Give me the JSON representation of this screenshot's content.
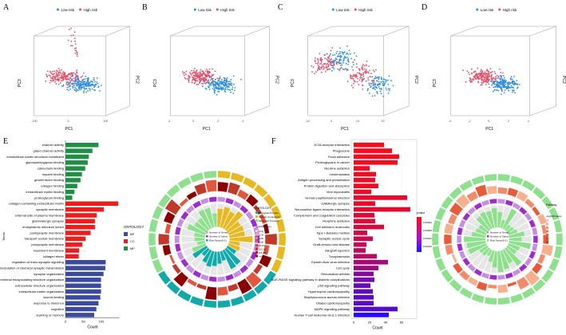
{
  "chart_data": [
    {
      "panel": "A",
      "type": "scatter",
      "title": "",
      "legend": [
        "Low risk",
        "High risk"
      ],
      "xlabel": "PC1",
      "ylabel": "PC3",
      "zlabel": "PC2",
      "ticks": [
        "-100",
        "0",
        "100"
      ]
    },
    {
      "panel": "B",
      "type": "scatter",
      "title": "",
      "legend": [
        "Low risk",
        "High risk"
      ],
      "xlabel": "PC1",
      "ylabel": "PC3",
      "zlabel": "PC2",
      "ticks": [
        "-2",
        "0",
        "2",
        "4"
      ]
    },
    {
      "panel": "C",
      "type": "scatter",
      "title": "",
      "legend": [
        "Low risk",
        "High risk"
      ],
      "xlabel": "PC1",
      "ylabel": "PC3",
      "zlabel": "PC2",
      "ticks": [
        "-10",
        "0",
        "10",
        "20"
      ]
    },
    {
      "panel": "D",
      "type": "scatter",
      "title": "",
      "legend": [
        "Low risk",
        "High risk"
      ],
      "xlabel": "PC1",
      "ylabel": "PC3",
      "zlabel": "PC2",
      "ticks": [
        "-4",
        "-2",
        "0",
        "2",
        "4"
      ]
    },
    {
      "panel": "E",
      "type": "bar",
      "orientation": "horizontal",
      "xlabel": "Count",
      "ylabel": "Terms",
      "xlim": [
        0,
        150
      ],
      "xticks": [
        "0",
        "50",
        "100"
      ],
      "legend_title": "ONTOLOGY",
      "legend": [
        {
          "name": "BP",
          "color": "#3b4a9c"
        },
        {
          "name": "CC",
          "color": "#ee1c1c"
        },
        {
          "name": "MF",
          "color": "#1f8f45"
        }
      ],
      "categories": [
        "channel activity",
        "gated channel activity",
        "extracellular matrix structural constituent",
        "glycosaminoglycan binding",
        "calmodulin binding",
        "heparin binding",
        "growth factor binding",
        "collagen binding",
        "extracellular matrix binding",
        "proteoglycan binding",
        "collagen-containing extracellular matrix",
        "synaptic membrane",
        "external side of plasma membrane",
        "glutamatergic synapse",
        "endoplasmic reticulum lumen",
        "postsynaptic membrane",
        "transport vesicle membrane",
        "presynaptic membrane",
        "basement membrane",
        "collagen trimer",
        "regulation of trans-synaptic signaling",
        "modulation of chemical synaptic transmission",
        "synapse organization",
        "external encapsulating structure organization",
        "extracellular structure organization",
        "extracellular matrix organization",
        "wound healing",
        "response to metal ion",
        "cognition",
        "learning or memory"
      ],
      "values": [
        92,
        75,
        65,
        62,
        55,
        46,
        42,
        33,
        25,
        19,
        147,
        107,
        87,
        82,
        82,
        70,
        56,
        47,
        38,
        37,
        112,
        111,
        106,
        99,
        99,
        99,
        97,
        92,
        86,
        80
      ],
      "ontology": [
        "MF",
        "MF",
        "MF",
        "MF",
        "MF",
        "MF",
        "MF",
        "MF",
        "MF",
        "MF",
        "CC",
        "CC",
        "CC",
        "CC",
        "CC",
        "CC",
        "CC",
        "CC",
        "CC",
        "CC",
        "BP",
        "BP",
        "BP",
        "BP",
        "BP",
        "BP",
        "BP",
        "BP",
        "BP",
        "BP"
      ]
    },
    {
      "panel": "E-circle",
      "type": "pie",
      "legend_title": "ONTOLOGY",
      "legend": [
        "Biological Process",
        "Cellular Component",
        "Molecular Function"
      ],
      "legend2_title": "-log10(Pvalue)",
      "legend2": [
        "(0,2]",
        "(2,4]",
        "(4,6]",
        "(6,8]",
        "(8,10]",
        "(10,15]",
        "(15,20]",
        ">=20"
      ],
      "inner_legend": [
        "Number of Genes",
        "Number of Select",
        "Rich Factor(0-1)"
      ]
    },
    {
      "panel": "F",
      "type": "bar",
      "orientation": "horizontal",
      "xlabel": "Count",
      "xlim": [
        0,
        72
      ],
      "xticks": [
        "0",
        "20",
        "40",
        "60"
      ],
      "colorbar_title": "pvalue",
      "colorbar_ticks": [
        "0.00004",
        "0.00008",
        "0.00012",
        "0.00016"
      ],
      "categories": [
        "ECM-receptor interaction",
        "Phagosome",
        "Focal adhesion",
        "Proteoglycans in cancer",
        "Nicotine addiction",
        "Leishmaniasis",
        "Antigen processing and presentation",
        "Protein digestion and absorption",
        "Viral myocarditis",
        "Human papillomavirus infection",
        "GABAergic synapse",
        "Neuroactive ligand-receptor interaction",
        "Complement and coagulation cascades",
        "Morphine addiction",
        "Cell adhesion molecules",
        "Type I diabetes mellitus",
        "Synaptic vesicle cycle",
        "Graft-versus-host disease",
        "Allograft rejection",
        "Toxoplasmosis",
        "Epstein-Barr virus infection",
        "Cell cycle",
        "Rheumatoid arthritis",
        "AGE-RAGE signaling pathway in diabetic complications",
        "p53 signaling pathway",
        "Hypertrophic cardiomyopathy",
        "Staphylococcus aureus infection",
        "Dilated cardiomyopathy",
        "MAPK signaling pathway",
        "Human T-cell leukemia virus 1 infection"
      ],
      "values": [
        38,
        48,
        57,
        55,
        20,
        28,
        27,
        31,
        22,
        67,
        27,
        71,
        26,
        27,
        38,
        17,
        24,
        16,
        15,
        29,
        43,
        31,
        25,
        26,
        21,
        24,
        25,
        25,
        55,
        44
      ],
      "pvalue": [
        1e-07,
        2e-07,
        3e-07,
        4e-07,
        5e-07,
        6e-07,
        7e-07,
        1e-06,
        1e-06,
        2e-06,
        2e-06,
        3e-06,
        4e-06,
        5e-06,
        6e-06,
        8e-06,
        1e-05,
        1.2e-05,
        1.5e-05,
        2e-05,
        3e-05,
        4e-05,
        6e-05,
        7e-05,
        9e-05,
        0.0001,
        0.0001,
        0.0001,
        0.00011,
        0.00018
      ]
    },
    {
      "panel": "F-circle",
      "type": "pie",
      "legend_title": "Pathway",
      "legend2_title": "-log10(Pvalue)",
      "inner_legend": [
        "Number of Genes",
        "Number of Select",
        "Rich Factor(0-1)"
      ]
    }
  ],
  "panel_labels": [
    "A",
    "B",
    "C",
    "D",
    "E",
    "F"
  ],
  "colors": {
    "low": "#2f8fd8",
    "high": "#e0506a",
    "mf": "#1f8f45",
    "cc": "#ee1c1c",
    "bp": "#3b4a9c"
  }
}
